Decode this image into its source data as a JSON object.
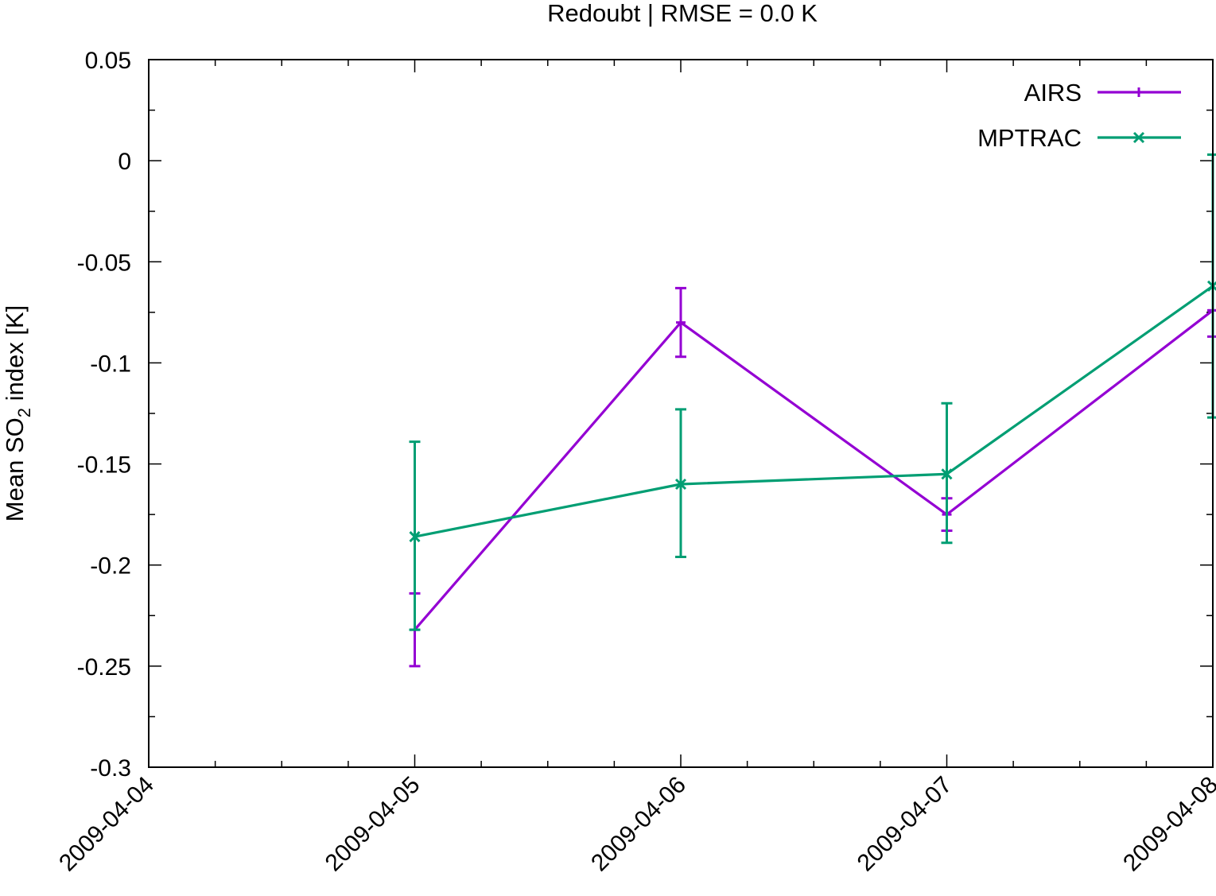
{
  "chart_data": {
    "type": "line",
    "title": "Redoubt | RMSE = 0.0 K",
    "ylabel": {
      "prefix": "Mean SO",
      "subscript": "2",
      "suffix": " index [K]"
    },
    "xlabel": "",
    "x_ticks": [
      "2009-04-04",
      "2009-04-05",
      "2009-04-06",
      "2009-04-07",
      "2009-04-08"
    ],
    "x_range": [
      "2009-04-04",
      "2009-04-08"
    ],
    "x_minor_ticks_per_interval": 4,
    "y_ticks": [
      "0.05",
      "0",
      "-0.05",
      "-0.1",
      "-0.15",
      "-0.2",
      "-0.25",
      "-0.3"
    ],
    "ylim": [
      -0.3,
      0.05
    ],
    "y_minor_ticks_per_interval": 2,
    "grid": false,
    "legend_position": "top-right",
    "series": [
      {
        "name": "AIRS",
        "color": "#9400d3",
        "marker": "plus",
        "x": [
          "2009-04-05",
          "2009-04-06",
          "2009-04-07",
          "2009-04-08"
        ],
        "y": [
          -0.232,
          -0.08,
          -0.175,
          -0.074
        ],
        "y_lower": [
          -0.25,
          -0.097,
          -0.183,
          -0.087
        ],
        "y_upper": [
          -0.214,
          -0.063,
          -0.167,
          -0.074
        ]
      },
      {
        "name": "MPTRAC",
        "color": "#009e73",
        "marker": "cross",
        "x": [
          "2009-04-05",
          "2009-04-06",
          "2009-04-07",
          "2009-04-08"
        ],
        "y": [
          -0.186,
          -0.16,
          -0.155,
          -0.062
        ],
        "y_lower": [
          -0.232,
          -0.196,
          -0.189,
          -0.127
        ],
        "y_upper": [
          -0.139,
          -0.123,
          -0.12,
          0.003
        ]
      }
    ]
  }
}
